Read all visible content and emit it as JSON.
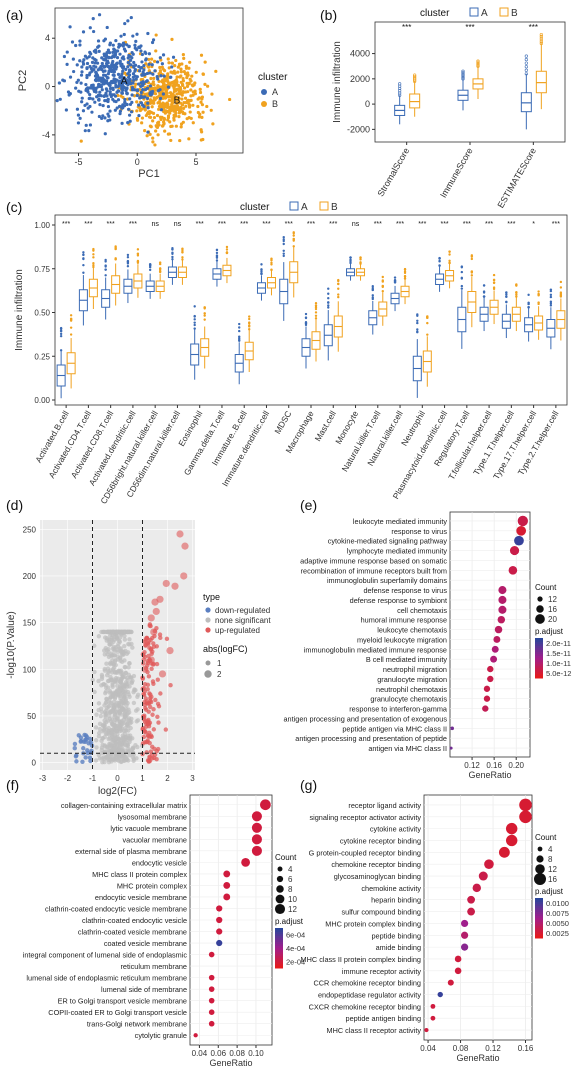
{
  "colors": {
    "cluster_A": "#3b6bb5",
    "cluster_B": "#f0a21f",
    "down_regulated": "#5b7fc1",
    "none_significant": "#bdbdbd",
    "up_regulated": "#e05a5a",
    "panel_bg": "#ebebeb",
    "grid": "#ffffff"
  },
  "panels": {
    "a": {
      "letter": "(a)"
    },
    "b": {
      "letter": "(b)"
    },
    "c": {
      "letter": "(c)"
    },
    "d": {
      "letter": "(d)"
    },
    "e": {
      "letter": "(e)"
    },
    "f": {
      "letter": "(f)"
    },
    "g": {
      "letter": "(g)"
    }
  },
  "chart_data": [
    {
      "id": "a",
      "type": "scatter",
      "xlabel": "PC1",
      "ylabel": "PC2",
      "xlim": [
        -7,
        9
      ],
      "ylim": [
        -5.5,
        6.5
      ],
      "xticks": [
        -5,
        0,
        5
      ],
      "yticks": [
        -4,
        0,
        4
      ],
      "legend_title": "cluster",
      "series": [
        {
          "name": "A",
          "center": [
            -2,
            0.8
          ],
          "spread": [
            2.2,
            2.0
          ],
          "label": "A"
        },
        {
          "name": "B",
          "center": [
            2.5,
            -0.8
          ],
          "spread": [
            2.0,
            1.8
          ],
          "label": "B"
        }
      ]
    },
    {
      "id": "b",
      "type": "box",
      "ylabel": "Immune infiltration",
      "ylim": [
        -3000,
        6500
      ],
      "yticks": [
        -2000,
        0,
        2000,
        4000
      ],
      "legend_title": "cluster",
      "legend_labels": [
        "A",
        "B"
      ],
      "categories": [
        "StromalScore",
        "ImmuneScore",
        "ESTIMATEScore"
      ],
      "significance": [
        "***",
        "***",
        "***"
      ],
      "series": [
        {
          "name": "A",
          "boxes": [
            {
              "min": -1600,
              "q1": -900,
              "median": -500,
              "q3": -100,
              "max": 700,
              "outlier_max": 1600
            },
            {
              "min": -500,
              "q1": 300,
              "median": 700,
              "q3": 1100,
              "max": 2000,
              "outlier_max": 2600
            },
            {
              "min": -2000,
              "q1": -600,
              "median": 100,
              "q3": 900,
              "max": 2400,
              "outlier_max": 3800
            }
          ]
        },
        {
          "name": "B",
          "boxes": [
            {
              "min": -1000,
              "q1": -300,
              "median": 200,
              "q3": 800,
              "max": 1800,
              "outlier_max": 2300
            },
            {
              "min": 400,
              "q1": 1200,
              "median": 1600,
              "q3": 2000,
              "max": 3000,
              "outlier_max": 3400
            },
            {
              "min": -400,
              "q1": 900,
              "median": 1700,
              "q3": 2600,
              "max": 4800,
              "outlier_max": 5500
            }
          ]
        }
      ]
    },
    {
      "id": "c",
      "type": "box",
      "ylabel": "Immune infiltration",
      "ylim": [
        0,
        1.0
      ],
      "yticks": [
        0.0,
        0.25,
        0.5,
        0.75,
        1.0
      ],
      "ytick_labels": [
        "0.00",
        "0.25",
        "0.50",
        "0.75",
        "1.00"
      ],
      "legend_title": "cluster",
      "legend_labels": [
        "A",
        "B"
      ],
      "categories": [
        "Activated.B.cell",
        "Activated.CD4.T.cell",
        "Activated.CD8.T.cell",
        "Activated.dendritic.cell",
        "CD56bright.natural.killer.cell",
        "CD56dim.natural.killer.cell",
        "Eosinophil",
        "Gamma.delta.T.cell",
        "Immature..B.cell",
        "Immature.dendritic.cell",
        "MDSC",
        "Macrophage",
        "Mast.cell",
        "Monocyte",
        "Natural.killer.T.cell",
        "Natural.killer.cell",
        "Neutrophil",
        "Plasmacytoid.dendritic.cell",
        "Regulatory.T.cell",
        "T.follicular.helper.cell",
        "Type.1.T.helper.cell",
        "Type.17.T.helper.cell",
        "Type.2.T.helper.cell"
      ],
      "significance": [
        "***",
        "***",
        "***",
        "***",
        "ns",
        "ns",
        "***",
        "***",
        "***",
        "***",
        "***",
        "***",
        "***",
        "ns",
        "***",
        "***",
        "***",
        "***",
        "***",
        "***",
        "***",
        "*",
        "***"
      ],
      "series": [
        {
          "name": "A",
          "medians": [
            0.14,
            0.57,
            0.58,
            0.65,
            0.65,
            0.73,
            0.26,
            0.72,
            0.21,
            0.64,
            0.62,
            0.3,
            0.37,
            0.73,
            0.47,
            0.58,
            0.18,
            0.69,
            0.46,
            0.49,
            0.45,
            0.43,
            0.41
          ],
          "iqr": [
            0.06,
            0.06,
            0.05,
            0.04,
            0.03,
            0.03,
            0.06,
            0.03,
            0.05,
            0.03,
            0.07,
            0.05,
            0.06,
            0.02,
            0.04,
            0.03,
            0.07,
            0.03,
            0.07,
            0.04,
            0.04,
            0.04,
            0.05
          ]
        },
        {
          "name": "B",
          "medians": [
            0.21,
            0.64,
            0.66,
            0.68,
            0.65,
            0.73,
            0.3,
            0.74,
            0.28,
            0.67,
            0.73,
            0.34,
            0.42,
            0.73,
            0.52,
            0.62,
            0.22,
            0.71,
            0.56,
            0.53,
            0.49,
            0.44,
            0.46
          ],
          "iqr": [
            0.06,
            0.05,
            0.05,
            0.04,
            0.03,
            0.03,
            0.05,
            0.03,
            0.05,
            0.03,
            0.06,
            0.05,
            0.06,
            0.02,
            0.04,
            0.03,
            0.06,
            0.03,
            0.06,
            0.04,
            0.04,
            0.04,
            0.05
          ]
        }
      ]
    },
    {
      "id": "d",
      "type": "scatter",
      "xlabel": "log2(FC)",
      "ylabel": "-log10(P.Value)",
      "xlim": [
        -3,
        3
      ],
      "ylim": [
        0,
        260
      ],
      "xticks": [
        -3,
        -2,
        -1,
        0,
        1,
        2,
        3
      ],
      "yticks": [
        0,
        50,
        100,
        150,
        200,
        250
      ],
      "thresholds": {
        "x": [
          -1,
          1
        ],
        "y": 10
      },
      "legend_type_title": "type",
      "legend_type": [
        "down-regulated",
        "none significant",
        "up-regulated"
      ],
      "legend_size_title": "abs(logFC)",
      "legend_size": [
        "1",
        "2"
      ],
      "highlight_points": [
        {
          "x": 2.5,
          "y": 245
        },
        {
          "x": 2.7,
          "y": 232
        },
        {
          "x": 2.65,
          "y": 200
        },
        {
          "x": 2.3,
          "y": 189
        },
        {
          "x": 1.95,
          "y": 192
        },
        {
          "x": 1.7,
          "y": 175
        },
        {
          "x": 1.5,
          "y": 172
        },
        {
          "x": 1.55,
          "y": 162
        },
        {
          "x": 1.35,
          "y": 155
        },
        {
          "x": 1.45,
          "y": 140
        },
        {
          "x": 2.1,
          "y": 120
        },
        {
          "x": 1.2,
          "y": 130
        },
        {
          "x": 1.8,
          "y": 95
        },
        {
          "x": 1.35,
          "y": 110
        },
        {
          "x": 1.1,
          "y": 100
        }
      ]
    },
    {
      "id": "e",
      "type": "scatter",
      "xlabel": "GeneRatio",
      "xlim": [
        0.08,
        0.225
      ],
      "xticks": [
        0.12,
        0.16,
        0.2
      ],
      "xtick_labels": [
        "0.12",
        "0.16",
        "0.20"
      ],
      "legend_size_title": "Count",
      "legend_size": [
        "12",
        "16",
        "20"
      ],
      "legend_color_title": "p.adjust",
      "legend_color": [
        "2.0e-11",
        "1.5e-11",
        "1.0e-11",
        "5.0e-12"
      ],
      "terms": [
        "leukocyte mediated immunity",
        "response to virus",
        "cytokine-mediated signaling pathway",
        "lymphocyte mediated immunity",
        "adaptive immune response based on somatic",
        "recombination of immune receptors built from",
        "immunoglobulin superfamily domains",
        "defense response to virus",
        "defense response to symbiont",
        "cell chemotaxis",
        "humoral immune response",
        "leukocyte chemotaxis",
        "myeloid leukocyte migration",
        "immunoglobulin mediated immune response",
        "B cell mediated immunity",
        "neutrophil migration",
        "granulocyte migration",
        "neutrophil chemotaxis",
        "granulocyte chemotaxis",
        "response to interferon-gamma",
        "antigen processing and presentation of exogenous",
        "peptide antigen via MHC class II",
        "antigen processing and presentation of peptide",
        "antigen via MHC class II"
      ],
      "points": [
        {
          "y": 0,
          "x": 0.212,
          "count": 21,
          "p": 0.2
        },
        {
          "y": 1,
          "x": 0.209,
          "count": 20,
          "p": 0.1
        },
        {
          "y": 2,
          "x": 0.205,
          "count": 20,
          "p": 0.95
        },
        {
          "y": 3,
          "x": 0.197,
          "count": 19,
          "p": 0.2
        },
        {
          "y": 5,
          "x": 0.194,
          "count": 18,
          "p": 0.2
        },
        {
          "y": 7,
          "x": 0.175,
          "count": 17,
          "p": 0.35
        },
        {
          "y": 8,
          "x": 0.175,
          "count": 17,
          "p": 0.35
        },
        {
          "y": 9,
          "x": 0.175,
          "count": 17,
          "p": 0.35
        },
        {
          "y": 10,
          "x": 0.173,
          "count": 16,
          "p": 0.3
        },
        {
          "y": 11,
          "x": 0.168,
          "count": 16,
          "p": 0.3
        },
        {
          "y": 12,
          "x": 0.165,
          "count": 15,
          "p": 0.3
        },
        {
          "y": 13,
          "x": 0.162,
          "count": 15,
          "p": 0.4
        },
        {
          "y": 14,
          "x": 0.159,
          "count": 15,
          "p": 0.4
        },
        {
          "y": 15,
          "x": 0.153,
          "count": 14,
          "p": 0.2
        },
        {
          "y": 16,
          "x": 0.153,
          "count": 14,
          "p": 0.2
        },
        {
          "y": 17,
          "x": 0.147,
          "count": 14,
          "p": 0.2
        },
        {
          "y": 18,
          "x": 0.147,
          "count": 14,
          "p": 0.2
        },
        {
          "y": 19,
          "x": 0.144,
          "count": 14,
          "p": 0.25
        },
        {
          "y": 21,
          "x": 0.084,
          "count": 9,
          "p": 0.7
        },
        {
          "y": 23,
          "x": 0.082,
          "count": 8,
          "p": 0.7
        }
      ]
    },
    {
      "id": "f",
      "type": "scatter",
      "xlabel": "GeneRatio",
      "xlim": [
        0.03,
        0.117
      ],
      "xticks": [
        0.04,
        0.06,
        0.08,
        0.1
      ],
      "xtick_labels": [
        "0.04",
        "0.06",
        "0.08",
        "0.10"
      ],
      "legend_size_title": "Count",
      "legend_size": [
        "4",
        "6",
        "8",
        "10",
        "12"
      ],
      "legend_color_title": "p.adjust",
      "legend_color": [
        "6e-04",
        "4e-04",
        "2e-04"
      ],
      "terms": [
        "collagen-containing extracellular matrix",
        "lysosomal membrane",
        "lytic vacuole membrane",
        "vacuolar membrane",
        "external side of plasma membrane",
        "endocytic vesicle",
        "MHC class II protein complex",
        "MHC protein complex",
        "endocytic vesicle membrane",
        "clathrin-coated endocytic vesicle membrane",
        "clathrin-coated endocytic vesicle",
        "clathrin-coated vesicle membrane",
        "coated vesicle membrane",
        "integral component of lumenal side of endoplasmic",
        "reticulum membrane",
        "lumenal side of endoplasmic reticulum membrane",
        "lumenal side of membrane",
        "ER to Golgi transport vesicle membrane",
        "COPII-coated ER to Golgi transport vesicle",
        "trans-Golgi network membrane",
        "cytolytic granule"
      ],
      "points": [
        {
          "y": 0,
          "x": 0.11,
          "count": 13,
          "p": 0.15
        },
        {
          "y": 1,
          "x": 0.101,
          "count": 12,
          "p": 0.15
        },
        {
          "y": 2,
          "x": 0.101,
          "count": 12,
          "p": 0.15
        },
        {
          "y": 3,
          "x": 0.101,
          "count": 12,
          "p": 0.15
        },
        {
          "y": 4,
          "x": 0.101,
          "count": 12,
          "p": 0.15
        },
        {
          "y": 5,
          "x": 0.089,
          "count": 10,
          "p": 0.15
        },
        {
          "y": 6,
          "x": 0.069,
          "count": 7,
          "p": 0.15
        },
        {
          "y": 7,
          "x": 0.069,
          "count": 7,
          "p": 0.15
        },
        {
          "y": 8,
          "x": 0.069,
          "count": 7,
          "p": 0.15
        },
        {
          "y": 9,
          "x": 0.061,
          "count": 6,
          "p": 0.15
        },
        {
          "y": 10,
          "x": 0.061,
          "count": 6,
          "p": 0.15
        },
        {
          "y": 11,
          "x": 0.061,
          "count": 6,
          "p": 0.15
        },
        {
          "y": 12,
          "x": 0.061,
          "count": 6,
          "p": 0.95
        },
        {
          "y": 13,
          "x": 0.053,
          "count": 5,
          "p": 0.15
        },
        {
          "y": 15,
          "x": 0.053,
          "count": 5,
          "p": 0.15
        },
        {
          "y": 16,
          "x": 0.053,
          "count": 5,
          "p": 0.15
        },
        {
          "y": 17,
          "x": 0.053,
          "count": 5,
          "p": 0.15
        },
        {
          "y": 18,
          "x": 0.053,
          "count": 5,
          "p": 0.15
        },
        {
          "y": 19,
          "x": 0.053,
          "count": 5,
          "p": 0.15
        },
        {
          "y": 20,
          "x": 0.036,
          "count": 3,
          "p": 0.15
        }
      ]
    },
    {
      "id": "g",
      "type": "scatter",
      "xlabel": "GeneRatio",
      "xlim": [
        0.035,
        0.168
      ],
      "xticks": [
        0.04,
        0.08,
        0.12,
        0.16
      ],
      "xtick_labels": [
        "0.04",
        "0.08",
        "0.12",
        "0.16"
      ],
      "legend_size_title": "Count",
      "legend_size": [
        "4",
        "8",
        "12",
        "16"
      ],
      "legend_color_title": "p.adjust",
      "legend_color": [
        "0.0100",
        "0.0075",
        "0.0050",
        "0.0025"
      ],
      "terms": [
        "receptor ligand activity",
        "signaling receptor activator activity",
        "cytokine activity",
        "cytokine receptor binding",
        "G protein-coupled receptor binding",
        "chemokine receptor binding",
        "glycosaminoglycan binding",
        "chemokine activity",
        "heparin binding",
        "sulfur compound binding",
        "MHC protein complex binding",
        "peptide binding",
        "amide binding",
        "MHC class II protein complex binding",
        "immune receptor activity",
        "CCR chemokine receptor binding",
        "endopeptidase regulator activity",
        "CXCR chemokine receptor binding",
        "peptide antigen binding",
        "MHC class II receptor activity"
      ],
      "points": [
        {
          "y": 0,
          "x": 0.16,
          "count": 17,
          "p": 0.1
        },
        {
          "y": 1,
          "x": 0.16,
          "count": 17,
          "p": 0.1
        },
        {
          "y": 2,
          "x": 0.143,
          "count": 15,
          "p": 0.1
        },
        {
          "y": 3,
          "x": 0.143,
          "count": 15,
          "p": 0.1
        },
        {
          "y": 4,
          "x": 0.134,
          "count": 14,
          "p": 0.1
        },
        {
          "y": 5,
          "x": 0.115,
          "count": 12,
          "p": 0.15
        },
        {
          "y": 6,
          "x": 0.108,
          "count": 11,
          "p": 0.2
        },
        {
          "y": 7,
          "x": 0.1,
          "count": 10,
          "p": 0.2
        },
        {
          "y": 8,
          "x": 0.093,
          "count": 9,
          "p": 0.2
        },
        {
          "y": 9,
          "x": 0.093,
          "count": 9,
          "p": 0.2
        },
        {
          "y": 10,
          "x": 0.085,
          "count": 8,
          "p": 0.5
        },
        {
          "y": 11,
          "x": 0.085,
          "count": 8,
          "p": 0.35
        },
        {
          "y": 12,
          "x": 0.085,
          "count": 8,
          "p": 0.6
        },
        {
          "y": 13,
          "x": 0.077,
          "count": 7,
          "p": 0.15
        },
        {
          "y": 14,
          "x": 0.077,
          "count": 7,
          "p": 0.15
        },
        {
          "y": 15,
          "x": 0.068,
          "count": 6,
          "p": 0.15
        },
        {
          "y": 16,
          "x": 0.055,
          "count": 5,
          "p": 0.95
        },
        {
          "y": 17,
          "x": 0.046,
          "count": 4,
          "p": 0.15
        },
        {
          "y": 18,
          "x": 0.046,
          "count": 4,
          "p": 0.15
        },
        {
          "y": 19,
          "x": 0.038,
          "count": 3,
          "p": 0.15
        }
      ]
    }
  ]
}
